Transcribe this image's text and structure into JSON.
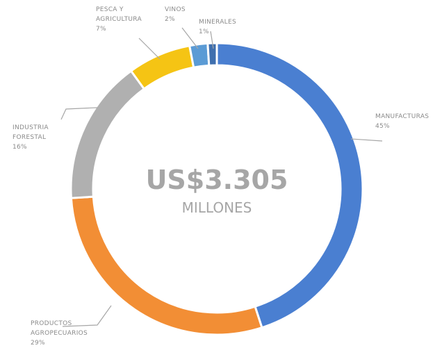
{
  "chart_data": {
    "type": "pie",
    "variant": "donut",
    "center": {
      "value": "US$3.305",
      "unit": "MILLONES"
    },
    "slices": [
      {
        "label_lines": [
          "MANUFACTURAS",
          "45%"
        ],
        "value": 45,
        "color": "#4a7fd1"
      },
      {
        "label_lines": [
          "PRODUCTOS",
          "AGROPECUARIOS",
          "29%"
        ],
        "value": 29,
        "color": "#f28e35"
      },
      {
        "label_lines": [
          "INDUSTRIA",
          "FORESTAL",
          "16%"
        ],
        "value": 16,
        "color": "#b0b0b0"
      },
      {
        "label_lines": [
          "PESCA Y",
          "AGRICULTURA",
          "7%"
        ],
        "value": 7,
        "color": "#f5c414"
      },
      {
        "label_lines": [
          "VINOS",
          "2%"
        ],
        "value": 2,
        "color": "#5b9bd5"
      },
      {
        "label_lines": [
          "MINERALES",
          "1%"
        ],
        "value": 1,
        "color": "#3f6fae"
      }
    ],
    "legend": "none"
  }
}
